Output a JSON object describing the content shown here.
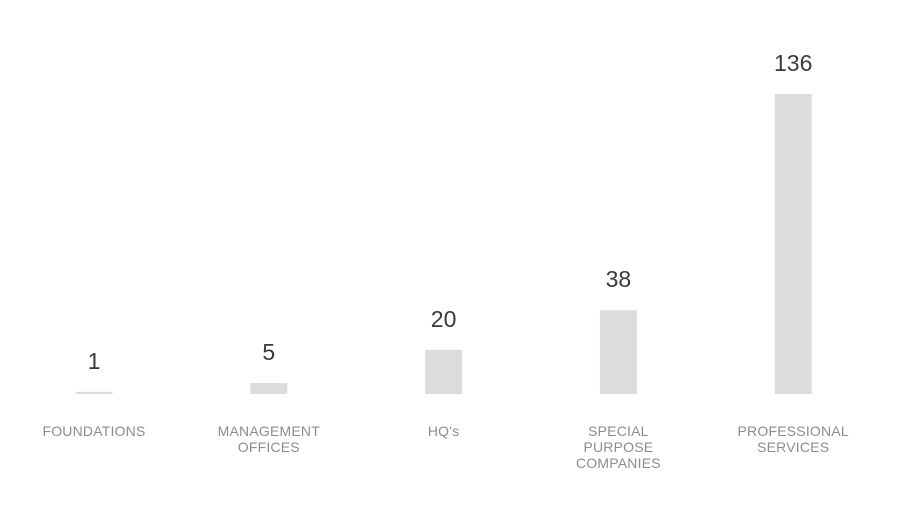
{
  "chart_data": {
    "type": "bar",
    "categories": [
      "FOUNDATIONS",
      "MANAGEMENT OFFICES",
      "HQ's",
      "SPECIAL PURPOSE COMPANIES",
      "PROFESSIONAL SERVICES"
    ],
    "values": [
      1,
      5,
      20,
      38,
      136
    ],
    "color": "#dcdcdd"
  }
}
